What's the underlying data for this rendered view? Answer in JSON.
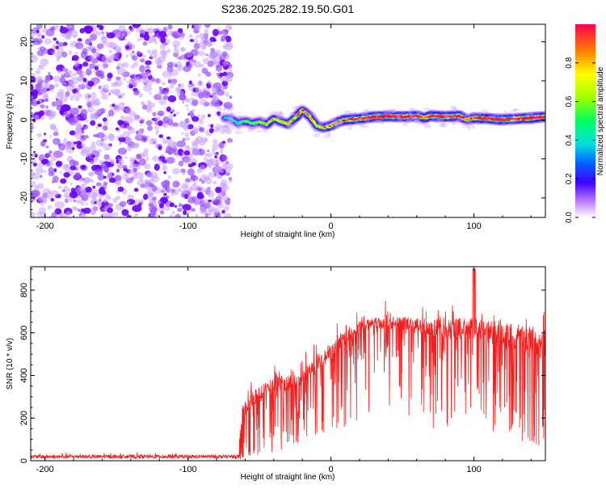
{
  "title": "S236.2025.282.19.50.G01",
  "chart_data": [
    {
      "type": "heatmap",
      "name": "spectrogram",
      "xlabel": "Height of straight line (km)",
      "ylabel": "Frequency (Hz)",
      "xlim": [
        -210,
        150
      ],
      "ylim": [
        -25,
        24.5
      ],
      "xticks": [
        -200,
        -100,
        0,
        100
      ],
      "yticks": [
        -20,
        -10,
        0,
        10,
        20
      ],
      "noise_region_x": [
        -210,
        -70
      ],
      "ridge": {
        "x": [
          -75,
          -70,
          -65,
          -60,
          -55,
          -50,
          -45,
          -40,
          -35,
          -30,
          -25,
          -20,
          -15,
          -10,
          -5,
          0,
          5,
          10,
          20,
          30,
          40,
          50,
          60,
          65,
          70,
          80,
          90,
          95,
          100,
          110,
          120,
          130,
          140,
          150
        ],
        "y": [
          0.5,
          0.3,
          -0.8,
          -0.3,
          -1.0,
          -0.5,
          -1.2,
          0.3,
          -0.5,
          -1.0,
          0.5,
          2.5,
          1.0,
          -1.5,
          -2.0,
          -1.5,
          -0.5,
          0.0,
          0.3,
          0.8,
          0.9,
          0.8,
          1.0,
          0.5,
          1.0,
          0.8,
          1.0,
          0.0,
          0.5,
          0.3,
          0.0,
          0.3,
          0.5,
          0.8
        ],
        "amplitude": [
          0.25,
          0.35,
          0.4,
          0.45,
          0.45,
          0.5,
          0.55,
          0.55,
          0.55,
          0.6,
          0.65,
          0.7,
          0.6,
          0.55,
          0.65,
          0.7,
          0.75,
          0.8,
          0.85,
          0.9,
          0.92,
          0.9,
          0.95,
          0.7,
          0.85,
          0.9,
          0.92,
          0.6,
          0.8,
          0.85,
          0.9,
          0.85,
          0.9,
          0.85
        ]
      }
    },
    {
      "type": "colorbar",
      "name": "colorbar",
      "label": "Normalized spectral amplitude",
      "range": [
        0,
        1
      ],
      "ticks": [
        "0.0",
        "0.2",
        "0.4",
        "0.6",
        "0.8"
      ],
      "tick_values": [
        0,
        0.2,
        0.4,
        0.6,
        0.8
      ]
    },
    {
      "type": "line",
      "name": "snr",
      "xlabel": "Height of straight line (km)",
      "ylabel": "SNR (10 * v/v)",
      "xlim": [
        -210,
        150
      ],
      "ylim": [
        0,
        910
      ],
      "xticks": [
        -200,
        -100,
        0,
        100
      ],
      "yticks": [
        0,
        200,
        400,
        600,
        800
      ],
      "color": "#f02020",
      "envelope": {
        "x": [
          -210,
          -150,
          -100,
          -65,
          -62,
          -55,
          -40,
          -25,
          -10,
          0,
          10,
          20,
          30,
          40,
          50,
          60,
          80,
          100,
          120,
          140,
          150
        ],
        "upper": [
          40,
          40,
          35,
          30,
          300,
          380,
          440,
          450,
          520,
          580,
          640,
          690,
          700,
          710,
          720,
          720,
          720,
          740,
          720,
          710,
          700
        ],
        "lower": [
          5,
          5,
          5,
          5,
          20,
          60,
          100,
          150,
          250,
          330,
          400,
          460,
          500,
          480,
          450,
          400,
          350,
          300,
          250,
          200,
          150
        ]
      },
      "points": 1800
    }
  ]
}
